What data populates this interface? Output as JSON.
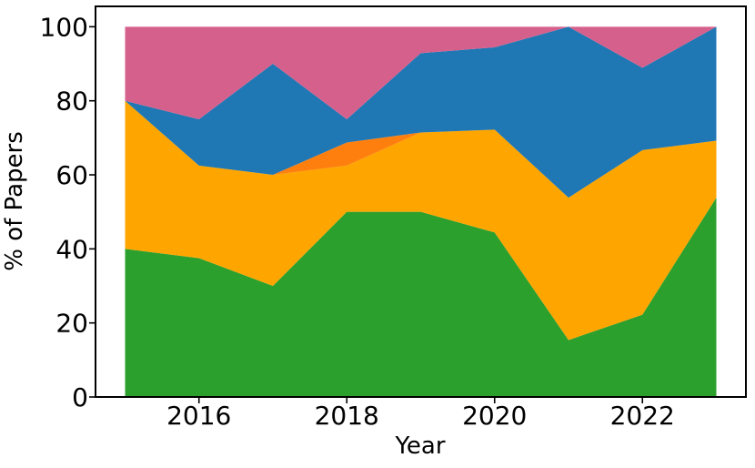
{
  "figure": {
    "background": "#ffffff"
  },
  "chart_data": {
    "type": "area",
    "stacked": true,
    "title": "",
    "xlabel": "Year",
    "ylabel": "% of Papers",
    "grid": false,
    "legend": "none",
    "x": [
      2015,
      2016,
      2017,
      2018,
      2019,
      2020,
      2021,
      2022,
      2023
    ],
    "xlim": [
      2014.6,
      2023.4
    ],
    "ylim": [
      0,
      105.5
    ],
    "xticks": [
      {
        "pos": 2016,
        "label": "2016"
      },
      {
        "pos": 2018,
        "label": "2018"
      },
      {
        "pos": 2020,
        "label": "2020"
      },
      {
        "pos": 2022,
        "label": "2022"
      }
    ],
    "yticks": [
      {
        "pos": 0,
        "label": "0"
      },
      {
        "pos": 20,
        "label": "20"
      },
      {
        "pos": 40,
        "label": "40"
      },
      {
        "pos": 60,
        "label": "60"
      },
      {
        "pos": 80,
        "label": "80"
      },
      {
        "pos": 100,
        "label": "100"
      }
    ],
    "series": [
      {
        "name": "green",
        "color": "#2ca02c",
        "values": [
          40,
          37.5,
          30,
          50,
          50,
          44.44,
          15.38,
          22.22,
          53.85
        ]
      },
      {
        "name": "orange",
        "color": "#ffa500",
        "values": [
          40,
          25,
          30,
          12.5,
          21.43,
          27.78,
          38.46,
          44.45,
          15.38
        ]
      },
      {
        "name": "dark-orange",
        "color": "#ff7f0e",
        "values": [
          0,
          0,
          0,
          6.25,
          0,
          0,
          0,
          0,
          0
        ]
      },
      {
        "name": "blue",
        "color": "#1f77b4",
        "values": [
          0,
          12.5,
          30,
          6.25,
          21.43,
          22.22,
          46.16,
          22.22,
          30.77
        ]
      },
      {
        "name": "pink",
        "color": "#d5608c",
        "values": [
          20,
          25,
          10,
          25,
          7.14,
          5.56,
          0,
          11.11,
          0
        ]
      }
    ],
    "cumulative_tops": {
      "green": [
        40,
        37.5,
        30,
        50,
        50,
        44.44,
        15.38,
        22.22,
        53.85
      ],
      "orange": [
        80,
        62.5,
        60,
        62.5,
        71.43,
        72.22,
        53.84,
        66.67,
        69.23
      ],
      "dark-orange": [
        80,
        62.5,
        60,
        68.75,
        71.43,
        72.22,
        53.84,
        66.67,
        69.23
      ],
      "blue": [
        80,
        75,
        90,
        75,
        92.86,
        94.44,
        100,
        88.89,
        100
      ],
      "pink": [
        100,
        100,
        100,
        100,
        100,
        100,
        100,
        100,
        100
      ]
    }
  }
}
